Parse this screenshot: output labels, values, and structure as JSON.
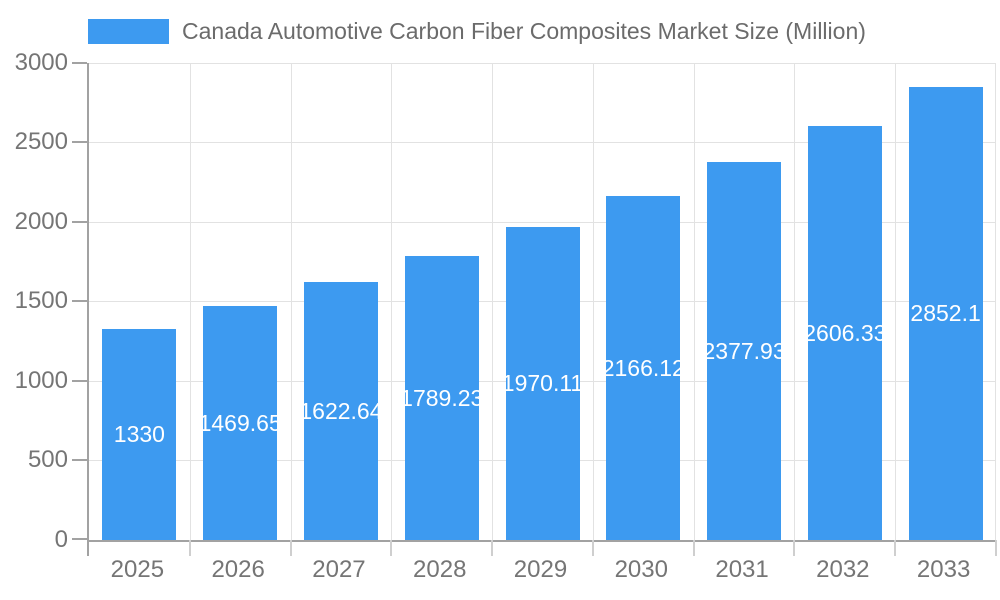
{
  "chart_data": {
    "type": "bar",
    "title": "Canada Automotive Carbon Fiber Composites Market Size (Million)",
    "categories": [
      "2025",
      "2026",
      "2027",
      "2028",
      "2029",
      "2030",
      "2031",
      "2032",
      "2033"
    ],
    "values": [
      1330,
      1469.65,
      1622.64,
      1789.23,
      1970.11,
      2166.12,
      2377.93,
      2606.33,
      2852.1
    ],
    "value_labels": [
      "1330",
      "1469.65",
      "1622.64",
      "1789.23",
      "1970.11",
      "2166.12",
      "2377.93",
      "2606.33",
      "2852.1"
    ],
    "xlabel": "",
    "ylabel": "",
    "ylim": [
      0,
      3000
    ],
    "yticks": [
      0,
      500,
      1000,
      1500,
      2000,
      2500,
      3000
    ],
    "ytick_labels": [
      "0",
      "500",
      "1000",
      "1500",
      "2000",
      "2500",
      "3000"
    ],
    "grid": true,
    "legend_position": "top-left",
    "legend_entries": [
      "Canada Automotive Carbon Fiber Composites Market Size (Million)"
    ],
    "colors": {
      "bar": "#3d9af0",
      "axis": "#a2a2a2",
      "gridline": "#e2e2e2",
      "xtick": "#cfcfcf",
      "tick_label": "#757575",
      "legend_text": "#6b6b6b",
      "value_label": "#ffffff"
    }
  }
}
